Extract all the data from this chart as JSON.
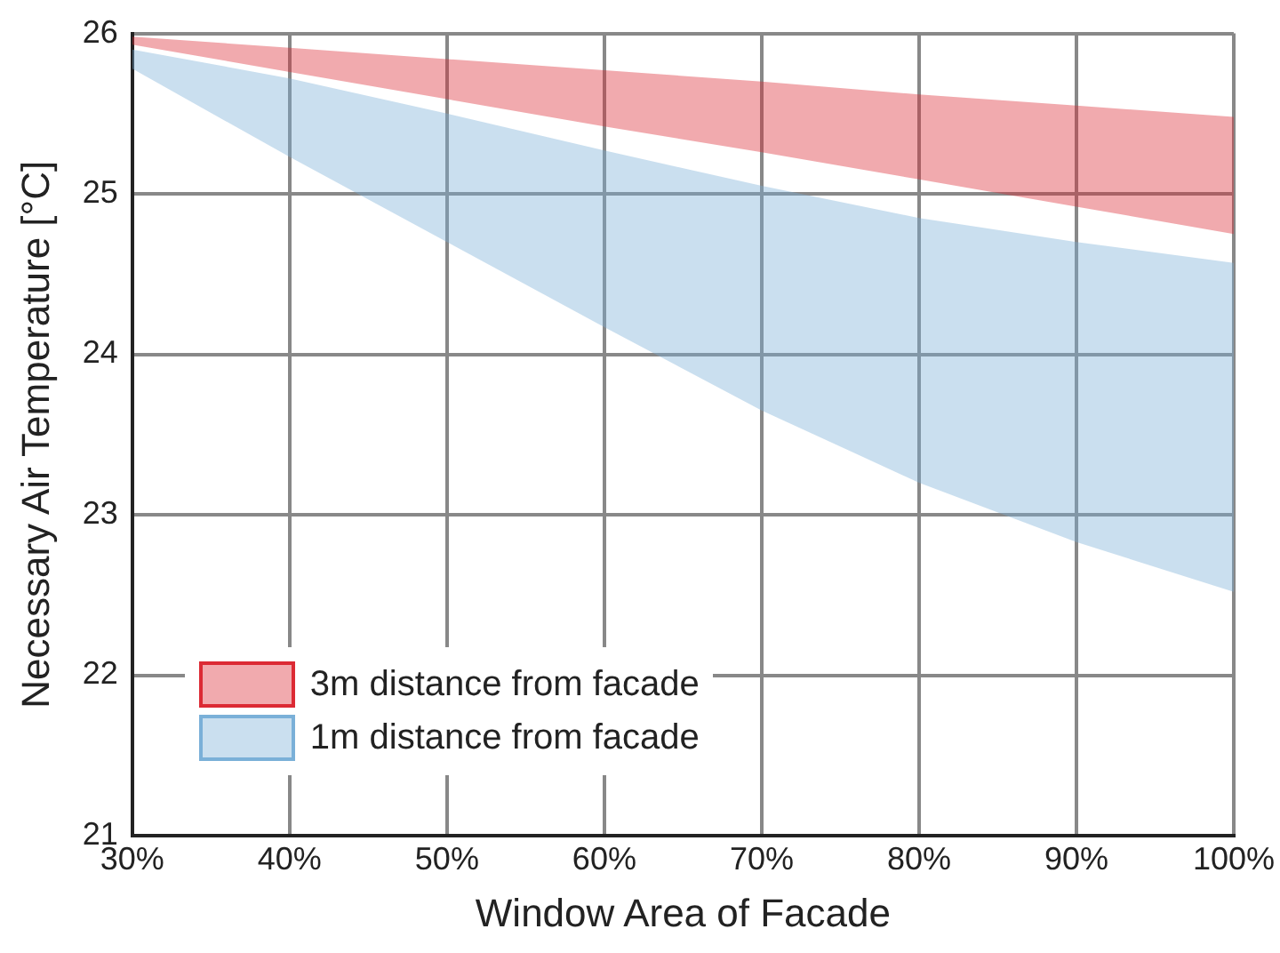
{
  "chart_data": {
    "type": "line",
    "xlabel": "Window Area of Facade",
    "ylabel": "Necessary Air Temperature [°C]",
    "x": [
      30,
      40,
      50,
      60,
      70,
      80,
      90,
      100
    ],
    "series": [
      {
        "name": "3m distance from facade",
        "color": "#dc2a34",
        "values": [
          null,
          null,
          null,
          null,
          null,
          null,
          null,
          null
        ],
        "lower": [
          25.93,
          25.76,
          25.59,
          25.42,
          25.26,
          25.09,
          24.92,
          24.75
        ],
        "upper": [
          25.98,
          25.91,
          25.84,
          25.77,
          25.7,
          25.62,
          25.55,
          25.48
        ]
      },
      {
        "name": "1m distance from facade",
        "color": "#7ab0d8",
        "values": [
          null,
          null,
          null,
          null,
          null,
          null,
          null,
          null
        ],
        "lower": [
          25.78,
          25.23,
          24.7,
          24.17,
          23.65,
          23.2,
          22.83,
          22.52
        ],
        "upper": [
          25.9,
          25.72,
          25.5,
          25.27,
          25.05,
          24.85,
          24.7,
          24.57
        ]
      }
    ],
    "xlim": [
      30,
      100
    ],
    "xticks": [
      {
        "value": 30,
        "label": "30%"
      },
      {
        "value": 40,
        "label": "40%"
      },
      {
        "value": 50,
        "label": "50%"
      },
      {
        "value": 60,
        "label": "60%"
      },
      {
        "value": 70,
        "label": "70%"
      },
      {
        "value": 80,
        "label": "80%"
      },
      {
        "value": 90,
        "label": "90%"
      },
      {
        "value": 100,
        "label": "100%"
      }
    ],
    "ylim": [
      21,
      26
    ],
    "yticks": [
      21,
      22,
      23,
      24,
      25,
      26
    ],
    "grid": true,
    "legend": "bottom left"
  }
}
